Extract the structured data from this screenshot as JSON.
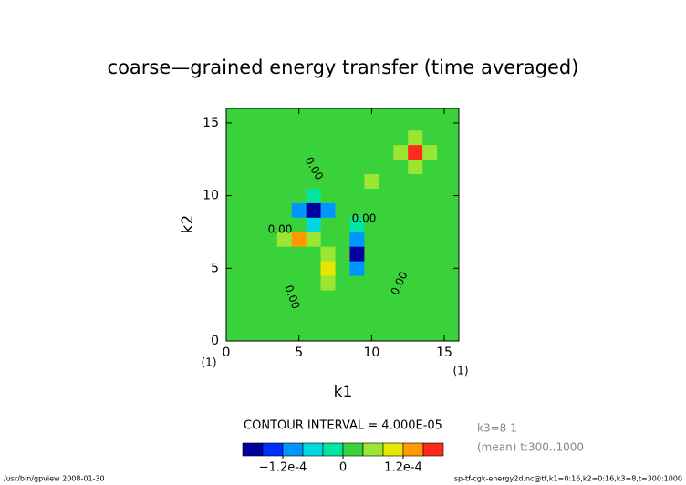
{
  "chart_data": {
    "type": "contour",
    "title": "coarse—grained energy transfer (time averaged)",
    "xlabel": "k1",
    "ylabel": "k2",
    "x_unit_label": "(1)",
    "y_unit_label": "(1)",
    "xlim": [
      0,
      16
    ],
    "ylim": [
      0,
      16
    ],
    "xticks": [
      0,
      5,
      10,
      15
    ],
    "yticks": [
      0,
      5,
      10,
      15
    ],
    "z": [
      [
        1e-05,
        1e-05,
        1e-05,
        1e-05,
        1e-05,
        1e-05,
        1e-05,
        1e-05,
        1e-05,
        1e-05,
        1e-05,
        1e-05,
        1e-05,
        1e-05,
        1e-05,
        1e-05,
        1e-05
      ],
      [
        1e-05,
        1e-05,
        1e-05,
        1e-05,
        1e-05,
        1e-05,
        1e-05,
        1e-05,
        1e-05,
        1e-05,
        1e-05,
        1e-05,
        1e-05,
        1e-05,
        1e-05,
        1e-05,
        1e-05
      ],
      [
        1e-05,
        1e-05,
        1e-05,
        1e-05,
        1e-05,
        1e-05,
        1e-05,
        1e-05,
        1e-05,
        1e-05,
        1e-05,
        1e-05,
        1e-05,
        1e-05,
        1e-05,
        1e-05,
        1e-05
      ],
      [
        1e-05,
        1e-05,
        1e-05,
        1e-05,
        1e-05,
        1e-05,
        1e-05,
        1e-05,
        1e-05,
        1e-05,
        1e-05,
        1e-05,
        1e-05,
        1e-05,
        1e-05,
        1e-05,
        1e-05
      ],
      [
        1e-05,
        1e-05,
        1e-05,
        1e-05,
        1e-05,
        1e-05,
        1e-05,
        5e-05,
        1e-05,
        1e-05,
        1e-05,
        1e-05,
        1e-05,
        1e-05,
        1e-05,
        1e-05,
        1e-05
      ],
      [
        1e-05,
        1e-05,
        1e-05,
        1e-05,
        1e-05,
        1e-05,
        1e-05,
        0.00011,
        1e-05,
        -0.0001,
        1e-05,
        1e-05,
        1e-05,
        1e-05,
        1e-05,
        1e-05,
        1e-05
      ],
      [
        1e-05,
        1e-05,
        1e-05,
        1e-05,
        1e-05,
        1e-05,
        1e-05,
        5e-05,
        1e-05,
        -0.00019,
        1e-05,
        1e-05,
        1e-05,
        1e-05,
        1e-05,
        1e-05,
        1e-05
      ],
      [
        1e-05,
        1e-05,
        1e-05,
        1e-05,
        5e-05,
        0.00013,
        5e-05,
        1e-05,
        1e-05,
        -0.0001,
        1e-05,
        1e-05,
        1e-05,
        1e-05,
        1e-05,
        1e-05,
        1e-05
      ],
      [
        1e-05,
        1e-05,
        1e-05,
        1e-05,
        1e-05,
        1e-05,
        -5e-05,
        1e-05,
        1e-05,
        -3e-05,
        1e-05,
        1e-05,
        1e-05,
        1e-05,
        1e-05,
        1e-05,
        1e-05
      ],
      [
        1e-05,
        1e-05,
        1e-05,
        1e-05,
        1e-05,
        -0.0001,
        -0.00019,
        -0.0001,
        1e-05,
        1e-05,
        1e-05,
        1e-05,
        1e-05,
        1e-05,
        1e-05,
        1e-05,
        1e-05
      ],
      [
        1e-05,
        1e-05,
        1e-05,
        1e-05,
        1e-05,
        1e-05,
        -3e-05,
        1e-05,
        1e-05,
        1e-05,
        1e-05,
        1e-05,
        1e-05,
        1e-05,
        1e-05,
        1e-05,
        1e-05
      ],
      [
        1e-05,
        1e-05,
        1e-05,
        1e-05,
        1e-05,
        1e-05,
        1e-05,
        1e-05,
        1e-05,
        1e-05,
        5e-05,
        1e-05,
        1e-05,
        1e-05,
        1e-05,
        1e-05,
        1e-05
      ],
      [
        1e-05,
        1e-05,
        1e-05,
        1e-05,
        1e-05,
        1e-05,
        1e-05,
        1e-05,
        1e-05,
        1e-05,
        1e-05,
        1e-05,
        1e-05,
        5e-05,
        1e-05,
        1e-05,
        1e-05
      ],
      [
        1e-05,
        1e-05,
        1e-05,
        1e-05,
        1e-05,
        1e-05,
        1e-05,
        1e-05,
        1e-05,
        1e-05,
        1e-05,
        1e-05,
        5e-05,
        0.00019,
        5e-05,
        1e-05,
        1e-05
      ],
      [
        1e-05,
        1e-05,
        1e-05,
        1e-05,
        1e-05,
        1e-05,
        1e-05,
        1e-05,
        1e-05,
        1e-05,
        1e-05,
        1e-05,
        1e-05,
        5e-05,
        1e-05,
        1e-05,
        1e-05
      ],
      [
        1e-05,
        1e-05,
        1e-05,
        1e-05,
        1e-05,
        1e-05,
        1e-05,
        1e-05,
        1e-05,
        1e-05,
        1e-05,
        1e-05,
        1e-05,
        1e-05,
        1e-05,
        1e-05,
        1e-05
      ],
      [
        1e-05,
        1e-05,
        1e-05,
        1e-05,
        1e-05,
        1e-05,
        1e-05,
        1e-05,
        1e-05,
        1e-05,
        1e-05,
        1e-05,
        1e-05,
        1e-05,
        1e-05,
        1e-05,
        1e-05
      ]
    ],
    "levels": [
      -0.0002,
      -0.00016,
      -0.00012,
      -8e-05,
      -4e-05,
      0,
      4e-05,
      8e-05,
      0.00012,
      0.00016,
      0.0002
    ],
    "colors": [
      "#0000a0",
      "#0030ff",
      "#0096ff",
      "#00d8e0",
      "#00e6a0",
      "#3ad23a",
      "#9be632",
      "#e6e600",
      "#ff9a00",
      "#ff2a1a"
    ],
    "colorbar_ticks": [
      {
        "value": -0.00012,
        "label": "−1.2e-4"
      },
      0,
      {
        "value": 0.00012,
        "label": "1.2e-4"
      }
    ],
    "contour_interval_text": "CONTOUR INTERVAL = 4.000E-05",
    "contour_labels": [
      "0.00",
      "0.00",
      "0.00",
      "0.00",
      "0.00"
    ],
    "info_lines": [
      "k3=8 1",
      "(mean) t:300..1000"
    ],
    "footer_left": "/usr/bin/gpview  2008-01-30",
    "footer_right": "sp-tf-cgk-energy2d.nc@tf,k1=0:16,k2=0:16,k3=8,t=300:1000"
  }
}
